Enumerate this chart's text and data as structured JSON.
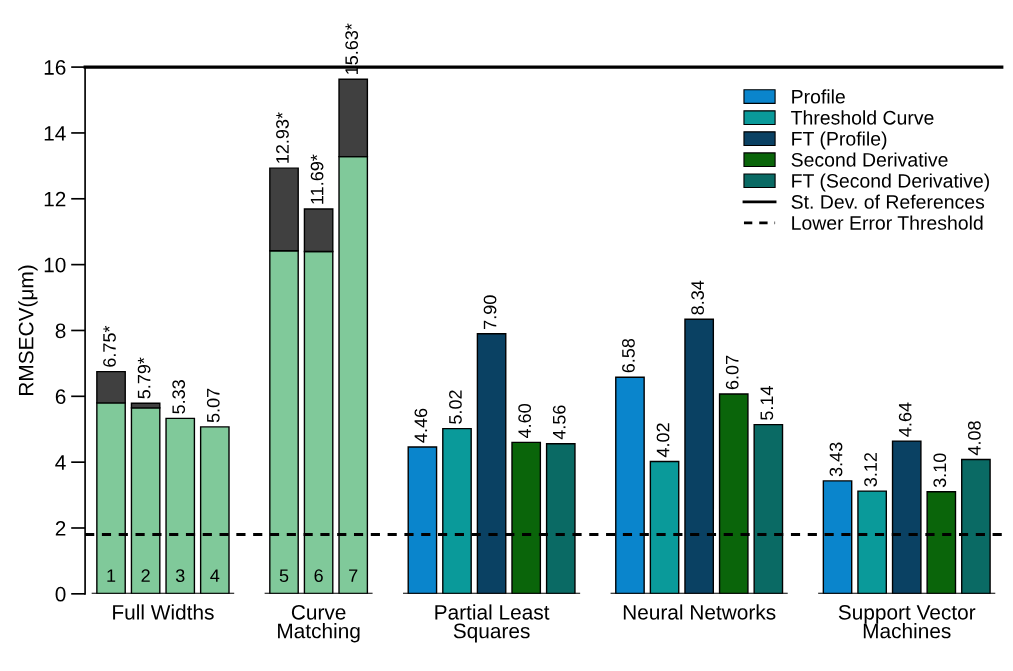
{
  "chart_data": {
    "type": "bar",
    "categories": [
      "1",
      "2",
      "3",
      "4",
      null,
      "5",
      "6",
      "7",
      null,
      null,
      null,
      null,
      null,
      null,
      null,
      null,
      null,
      null,
      null,
      null,
      null,
      null,
      null,
      null,
      null,
      null
    ],
    "ylabel": "RMSECV(μm)",
    "ylim": [
      0,
      16
    ],
    "yticks": [
      0,
      2,
      4,
      6,
      8,
      10,
      12,
      14,
      16
    ],
    "stacked": true,
    "series": [
      {
        "color": "#80c99a",
        "values": [
          5.8,
          5.65,
          5.33,
          5.07,
          null,
          10.42,
          10.4,
          13.28,
          null,
          null,
          null,
          null,
          null,
          null,
          null,
          null,
          null,
          null,
          null,
          null,
          null,
          null,
          null,
          null,
          null,
          null
        ]
      },
      {
        "color": "#404040",
        "values": [
          0.95,
          0.14,
          null,
          null,
          null,
          2.51,
          1.29,
          2.35,
          null,
          null,
          null,
          null,
          null,
          null,
          null,
          null,
          null,
          null,
          null,
          null,
          null,
          null,
          null,
          null,
          null,
          null
        ]
      },
      {
        "name": "Profile",
        "color": "#0a85cc",
        "values": [
          null,
          null,
          null,
          null,
          null,
          null,
          null,
          null,
          null,
          4.46,
          null,
          null,
          null,
          null,
          null,
          6.58,
          null,
          null,
          null,
          null,
          null,
          3.43,
          null,
          null,
          null,
          null
        ],
        "value_labels": [
          null,
          null,
          null,
          null,
          null,
          null,
          null,
          null,
          null,
          "4.46",
          null,
          null,
          null,
          null,
          null,
          "6.58",
          null,
          null,
          null,
          null,
          null,
          "3.43",
          null,
          null,
          null,
          null
        ]
      },
      {
        "name": "Threshold Curve",
        "color": "#0a9a9a",
        "values": [
          null,
          null,
          null,
          null,
          null,
          null,
          null,
          null,
          null,
          null,
          5.02,
          null,
          null,
          null,
          null,
          null,
          4.02,
          null,
          null,
          null,
          null,
          null,
          3.12,
          null,
          null,
          null
        ],
        "value_labels": [
          null,
          null,
          null,
          null,
          null,
          null,
          null,
          null,
          null,
          null,
          "5.02",
          null,
          null,
          null,
          null,
          null,
          "4.02",
          null,
          null,
          null,
          null,
          null,
          "3.12",
          null,
          null,
          null
        ]
      },
      {
        "name": "FT (Profile)",
        "color": "#0a4163",
        "values": [
          null,
          null,
          null,
          null,
          null,
          null,
          null,
          null,
          null,
          null,
          null,
          7.9,
          null,
          null,
          null,
          null,
          null,
          8.34,
          null,
          null,
          null,
          null,
          null,
          4.64,
          null,
          null
        ],
        "value_labels": [
          null,
          null,
          null,
          null,
          null,
          null,
          null,
          null,
          null,
          null,
          null,
          "7.90",
          null,
          null,
          null,
          null,
          null,
          "8.34",
          null,
          null,
          null,
          null,
          null,
          "4.64",
          null,
          null
        ]
      },
      {
        "name": "Second Derivative",
        "color": "#0a650a",
        "values": [
          null,
          null,
          null,
          null,
          null,
          null,
          null,
          null,
          null,
          null,
          null,
          null,
          4.6,
          null,
          null,
          null,
          null,
          null,
          6.07,
          null,
          null,
          null,
          null,
          null,
          3.1,
          null
        ],
        "value_labels": [
          null,
          null,
          null,
          null,
          null,
          null,
          null,
          null,
          null,
          null,
          null,
          null,
          "4.60",
          null,
          null,
          null,
          null,
          null,
          "6.07",
          null,
          null,
          null,
          null,
          null,
          "3.10",
          null
        ]
      },
      {
        "name": "FT (Second Derivative)",
        "color": "#0a6a64",
        "values": [
          null,
          null,
          null,
          null,
          null,
          null,
          null,
          null,
          null,
          null,
          null,
          null,
          null,
          4.56,
          null,
          null,
          null,
          null,
          null,
          5.14,
          null,
          null,
          null,
          null,
          null,
          4.08
        ],
        "value_labels": [
          null,
          null,
          null,
          null,
          null,
          null,
          null,
          null,
          null,
          null,
          null,
          null,
          null,
          "4.56",
          null,
          null,
          null,
          null,
          null,
          "5.14",
          null,
          null,
          null,
          null,
          null,
          "4.08"
        ]
      }
    ],
    "totals": [
      "6.75*",
      "5.79*",
      "5.33",
      "5.07",
      null,
      "12.93*",
      "11.69*",
      "15.63*",
      null,
      null,
      null,
      null,
      null,
      null,
      null,
      null,
      null,
      null,
      null,
      null,
      null,
      null,
      null,
      null,
      null,
      null
    ],
    "ref_lines": [
      {
        "axis": "y",
        "value": 16,
        "label": "St. Dev. of References",
        "color": "#000000",
        "line_style": "solid"
      },
      {
        "axis": "y",
        "value": 1.8,
        "label": "Lower Error Threshold",
        "color": "#000000",
        "line_style": "dashed"
      }
    ],
    "annotations": [
      "Full Widths",
      "Curve\nMatching",
      "Partial Least\nSquares",
      "Neural Networks",
      "Support Vector\nMachines"
    ],
    "legend": "top right"
  }
}
